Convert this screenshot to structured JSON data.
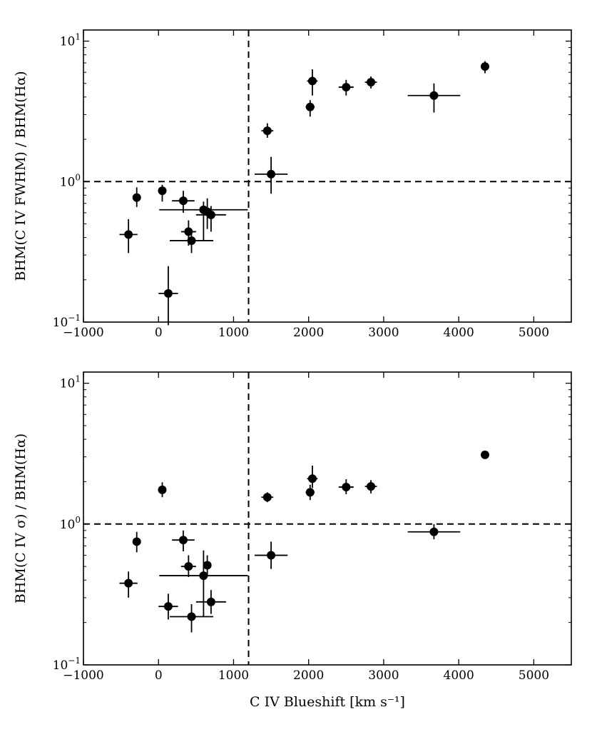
{
  "chart_data": [
    {
      "type": "scatter",
      "panel": "top",
      "ylabel": "BHM(C IV FWHM) / BHM(Hα)",
      "xlabel": "",
      "xlim": [
        -1000,
        5500
      ],
      "ylim": [
        0.1,
        12
      ],
      "yscale": "log",
      "x_ticks": [
        -1000,
        0,
        1000,
        2000,
        3000,
        4000,
        5000
      ],
      "x_tick_labels": [
        "−1000",
        "0",
        "1000",
        "2000",
        "3000",
        "4000",
        "5000"
      ],
      "y_ticks": [
        {
          "value": 0.1,
          "base": "10",
          "exp": "−1"
        },
        {
          "value": 1,
          "base": "10",
          "exp": "0"
        },
        {
          "value": 10,
          "base": "10",
          "exp": "1"
        }
      ],
      "reference_lines": {
        "x": 1200,
        "y": 1.0
      },
      "points": [
        {
          "x": -400,
          "xerr": 120,
          "y": 0.42,
          "ylo": 0.31,
          "yhi": 0.54
        },
        {
          "x": -290,
          "xerr": 0,
          "y": 0.77,
          "ylo": 0.66,
          "yhi": 0.91
        },
        {
          "x": 50,
          "xerr": 0,
          "y": 0.86,
          "ylo": 0.72,
          "yhi": 0.95
        },
        {
          "x": 130,
          "xerr": 130,
          "y": 0.16,
          "ylo": 0.095,
          "yhi": 0.25
        },
        {
          "x": 330,
          "xerr": 150,
          "y": 0.73,
          "ylo": 0.6,
          "yhi": 0.86
        },
        {
          "x": 400,
          "xerr": 100,
          "y": 0.44,
          "ylo": 0.35,
          "yhi": 0.53
        },
        {
          "x": 440,
          "xerr": 290,
          "y": 0.38,
          "ylo": 0.31,
          "yhi": 0.44
        },
        {
          "x": 600,
          "xerr": 590,
          "y": 0.63,
          "ylo": 0.38,
          "yhi": 0.72
        },
        {
          "x": 650,
          "xerr": 0,
          "y": 0.61,
          "ylo": 0.46,
          "yhi": 0.76
        },
        {
          "x": 700,
          "xerr": 200,
          "y": 0.58,
          "ylo": 0.44,
          "yhi": 0.67
        },
        {
          "x": 1450,
          "xerr": 80,
          "y": 2.3,
          "ylo": 2.05,
          "yhi": 2.6
        },
        {
          "x": 1500,
          "xerr": 220,
          "y": 1.13,
          "ylo": 0.82,
          "yhi": 1.5
        },
        {
          "x": 2020,
          "xerr": 60,
          "y": 3.4,
          "ylo": 2.9,
          "yhi": 3.8
        },
        {
          "x": 2050,
          "xerr": 70,
          "y": 5.2,
          "ylo": 4.1,
          "yhi": 6.3
        },
        {
          "x": 2500,
          "xerr": 100,
          "y": 4.7,
          "ylo": 4.1,
          "yhi": 5.3
        },
        {
          "x": 2830,
          "xerr": 80,
          "y": 5.1,
          "ylo": 4.6,
          "yhi": 5.6
        },
        {
          "x": 3670,
          "xerr": 350,
          "y": 4.1,
          "ylo": 3.1,
          "yhi": 5.0
        },
        {
          "x": 4350,
          "xerr": 50,
          "y": 6.6,
          "ylo": 5.9,
          "yhi": 7.2
        }
      ]
    },
    {
      "type": "scatter",
      "panel": "bottom",
      "ylabel": "BHM(C IV σ) / BHM(Hα)",
      "xlabel": "C IV Blueshift [km s⁻¹]",
      "xlim": [
        -1000,
        5500
      ],
      "ylim": [
        0.1,
        12
      ],
      "yscale": "log",
      "x_ticks": [
        -1000,
        0,
        1000,
        2000,
        3000,
        4000,
        5000
      ],
      "x_tick_labels": [
        "−1000",
        "0",
        "1000",
        "2000",
        "3000",
        "4000",
        "5000"
      ],
      "y_ticks": [
        {
          "value": 0.1,
          "base": "10",
          "exp": "−1"
        },
        {
          "value": 1,
          "base": "10",
          "exp": "0"
        },
        {
          "value": 10,
          "base": "10",
          "exp": "1"
        }
      ],
      "reference_lines": {
        "x": 1200,
        "y": 1.0
      },
      "points": [
        {
          "x": -400,
          "xerr": 120,
          "y": 0.38,
          "ylo": 0.3,
          "yhi": 0.46
        },
        {
          "x": -290,
          "xerr": 0,
          "y": 0.75,
          "ylo": 0.63,
          "yhi": 0.88
        },
        {
          "x": 50,
          "xerr": 0,
          "y": 1.75,
          "ylo": 1.55,
          "yhi": 1.98
        },
        {
          "x": 130,
          "xerr": 130,
          "y": 0.26,
          "ylo": 0.21,
          "yhi": 0.32
        },
        {
          "x": 330,
          "xerr": 150,
          "y": 0.77,
          "ylo": 0.64,
          "yhi": 0.9
        },
        {
          "x": 400,
          "xerr": 100,
          "y": 0.5,
          "ylo": 0.42,
          "yhi": 0.6
        },
        {
          "x": 440,
          "xerr": 290,
          "y": 0.22,
          "ylo": 0.17,
          "yhi": 0.27
        },
        {
          "x": 600,
          "xerr": 590,
          "y": 0.43,
          "ylo": 0.22,
          "yhi": 0.65
        },
        {
          "x": 650,
          "xerr": 0,
          "y": 0.51,
          "ylo": 0.43,
          "yhi": 0.6
        },
        {
          "x": 700,
          "xerr": 200,
          "y": 0.28,
          "ylo": 0.23,
          "yhi": 0.34
        },
        {
          "x": 1450,
          "xerr": 80,
          "y": 1.55,
          "ylo": 1.43,
          "yhi": 1.68
        },
        {
          "x": 1500,
          "xerr": 220,
          "y": 0.6,
          "ylo": 0.48,
          "yhi": 0.75
        },
        {
          "x": 2020,
          "xerr": 60,
          "y": 1.68,
          "ylo": 1.48,
          "yhi": 1.9
        },
        {
          "x": 2050,
          "xerr": 70,
          "y": 2.1,
          "ylo": 1.8,
          "yhi": 2.6
        },
        {
          "x": 2500,
          "xerr": 100,
          "y": 1.83,
          "ylo": 1.63,
          "yhi": 2.08
        },
        {
          "x": 2830,
          "xerr": 80,
          "y": 1.85,
          "ylo": 1.65,
          "yhi": 2.05
        },
        {
          "x": 3670,
          "xerr": 350,
          "y": 0.88,
          "ylo": 0.78,
          "yhi": 1.0
        },
        {
          "x": 4350,
          "xerr": 50,
          "y": 3.1,
          "ylo": 3.1,
          "yhi": 3.1
        }
      ]
    }
  ]
}
